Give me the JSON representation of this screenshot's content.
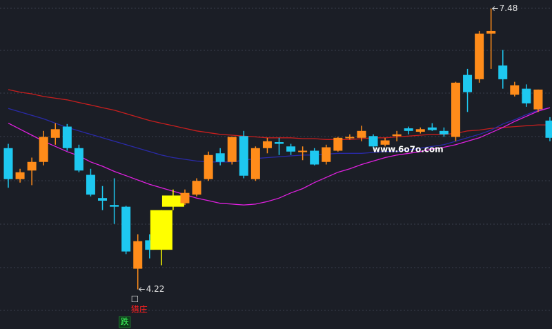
{
  "chart_data": {
    "type": "candlestick",
    "open": [
      5.86,
      5.5,
      5.6,
      5.7,
      5.98,
      6.11,
      5.86,
      5.55,
      5.28,
      5.2,
      5.18,
      4.46,
      4.79,
      4.68,
      5.18,
      5.22,
      5.32,
      5.5,
      5.8,
      5.7,
      6.0,
      5.5,
      5.86,
      5.93,
      5.88,
      5.82,
      5.83,
      5.7,
      5.83,
      5.98,
      5.98,
      6.0,
      5.9,
      6.0,
      6.09,
      6.05,
      6.1,
      6.06,
      5.99,
      6.71,
      6.66,
      7.19,
      6.82,
      6.48,
      6.55,
      6.31,
      6.18
    ],
    "close": [
      5.5,
      5.58,
      5.7,
      5.99,
      6.08,
      5.86,
      5.6,
      5.32,
      5.25,
      5.18,
      4.66,
      4.78,
      4.68,
      5.14,
      5.31,
      5.34,
      5.48,
      5.78,
      5.7,
      5.99,
      5.54,
      5.86,
      5.94,
      5.91,
      5.82,
      5.83,
      5.67,
      5.87,
      5.98,
      5.99,
      6.06,
      5.88,
      5.95,
      6.02,
      6.06,
      6.08,
      6.07,
      6.02,
      6.62,
      6.51,
      7.19,
      7.22,
      6.66,
      6.59,
      6.38,
      6.54,
      5.98
    ],
    "high": [
      5.91,
      5.62,
      5.75,
      6.06,
      6.15,
      6.14,
      5.9,
      5.62,
      5.42,
      5.51,
      5.19,
      4.86,
      4.86,
      5.14,
      5.38,
      5.38,
      5.51,
      5.82,
      5.86,
      5.99,
      6.06,
      5.88,
      5.98,
      5.98,
      5.91,
      5.88,
      5.86,
      5.9,
      5.99,
      6.02,
      6.12,
      6.02,
      5.98,
      6.06,
      6.11,
      6.1,
      6.15,
      6.1,
      6.63,
      6.78,
      7.22,
      7.48,
      7.0,
      6.63,
      6.6,
      6.54,
      6.22
    ],
    "low": [
      5.4,
      5.46,
      5.43,
      5.66,
      5.9,
      5.83,
      5.58,
      5.3,
      5.14,
      4.98,
      4.63,
      4.22,
      4.58,
      4.5,
      5.14,
      5.2,
      5.3,
      5.48,
      5.66,
      5.67,
      5.51,
      5.48,
      5.8,
      5.78,
      5.78,
      5.72,
      5.66,
      5.67,
      5.82,
      5.96,
      5.94,
      5.86,
      5.88,
      5.94,
      6.02,
      6.03,
      6.06,
      5.99,
      5.94,
      6.28,
      6.62,
      6.78,
      6.55,
      6.46,
      6.34,
      6.28,
      5.94
    ],
    "colors": [
      "#1ec8f0",
      "#ff8c1a",
      "#ff8c1a",
      "#ff8c1a",
      "#ff8c1a",
      "#1ec8f0",
      "#1ec8f0",
      "#1ec8f0",
      "#1ec8f0",
      "#1ec8f0",
      "#1ec8f0",
      "#ff8c1a",
      "#1ec8f0",
      "#ffff00",
      "#ffff00",
      "#ff8c1a",
      "#ff8c1a",
      "#ff8c1a",
      "#1ec8f0",
      "#ff8c1a",
      "#1ec8f0",
      "#ff8c1a",
      "#ff8c1a",
      "#1ec8f0",
      "#1ec8f0",
      "#ff8c1a",
      "#1ec8f0",
      "#ff8c1a",
      "#ff8c1a",
      "#ff8c1a",
      "#ff8c1a",
      "#1ec8f0",
      "#ff8c1a",
      "#ff8c1a",
      "#1ec8f0",
      "#ff8c1a",
      "#1ec8f0",
      "#1ec8f0",
      "#ff8c1a",
      "#1ec8f0",
      "#ff8c1a",
      "#ff8c1a",
      "#1ec8f0",
      "#ff8c1a",
      "#1ec8f0",
      "#ff8c1a",
      "#1ec8f0"
    ],
    "lines": [
      {
        "color": "#c81e1e",
        "values": [
          6.54,
          6.51,
          6.49,
          6.46,
          6.44,
          6.42,
          6.39,
          6.36,
          6.33,
          6.3,
          6.26,
          6.22,
          6.18,
          6.15,
          6.12,
          6.09,
          6.06,
          6.04,
          6.02,
          6.01,
          6.0,
          5.99,
          5.98,
          5.98,
          5.98,
          5.97,
          5.97,
          5.96,
          5.96,
          5.96,
          5.97,
          5.98,
          5.98,
          5.99,
          6.0,
          6.01,
          6.02,
          6.02,
          6.03,
          6.06,
          6.07,
          6.09,
          6.1,
          6.11,
          6.12,
          6.13,
          6.13
        ]
      },
      {
        "color": "#2a2aa8",
        "values": [
          6.32,
          6.28,
          6.24,
          6.2,
          6.15,
          6.1,
          6.06,
          6.02,
          5.98,
          5.94,
          5.9,
          5.86,
          5.82,
          5.78,
          5.75,
          5.73,
          5.71,
          5.7,
          5.7,
          5.7,
          5.72,
          5.74,
          5.75,
          5.76,
          5.77,
          5.78,
          5.78,
          5.79,
          5.8,
          5.8,
          5.8,
          5.81,
          5.82,
          5.82,
          5.84,
          5.86,
          5.88,
          5.9,
          5.94,
          5.98,
          6.02,
          6.07,
          6.14,
          6.19,
          6.25,
          6.3,
          6.33
        ]
      },
      {
        "color": "#e020e0",
        "values": [
          6.15,
          6.08,
          6.01,
          5.94,
          5.88,
          5.82,
          5.77,
          5.7,
          5.65,
          5.59,
          5.54,
          5.49,
          5.44,
          5.4,
          5.36,
          5.32,
          5.28,
          5.25,
          5.22,
          5.21,
          5.2,
          5.21,
          5.24,
          5.28,
          5.34,
          5.39,
          5.46,
          5.52,
          5.58,
          5.62,
          5.67,
          5.71,
          5.75,
          5.78,
          5.8,
          5.82,
          5.85,
          5.87,
          5.9,
          5.94,
          5.98,
          6.04,
          6.1,
          6.17,
          6.23,
          6.29,
          6.33
        ]
      }
    ],
    "ylim": [
      3.76,
      7.58
    ],
    "annotations": [
      "□",
      "猎庄",
      "跌",
      "www.6o7o.com"
    ]
  }
}
